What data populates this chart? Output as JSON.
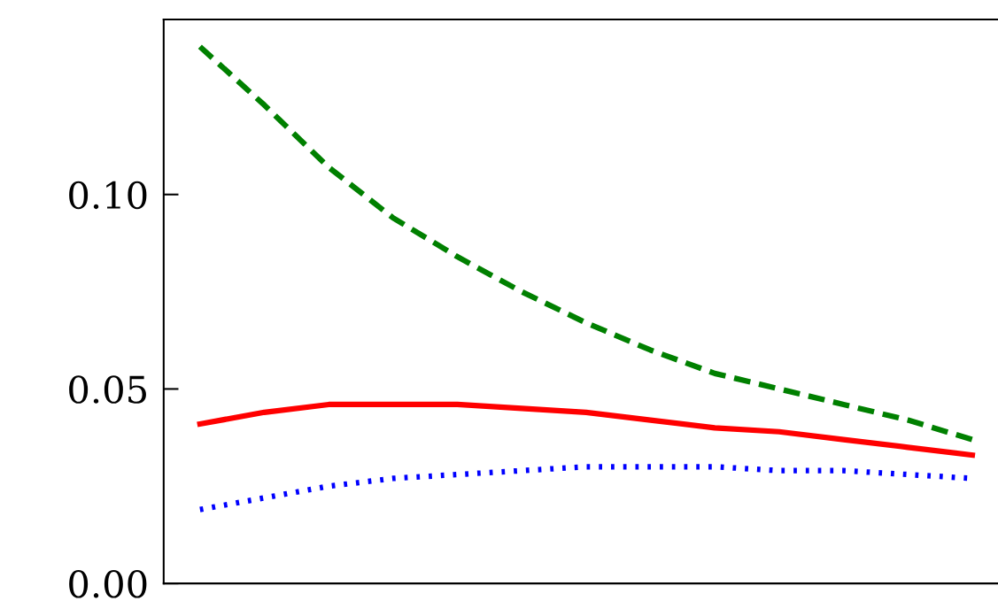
{
  "chart_data": {
    "type": "line",
    "categories": [
      null,
      null,
      null,
      null,
      null,
      null,
      null,
      null,
      null,
      null,
      null,
      null,
      null
    ],
    "series": [
      {
        "color": "#008000",
        "line_style": "dashed",
        "values": [
          0.138,
          0.123,
          0.107,
          0.094,
          0.084,
          0.075,
          0.067,
          0.06,
          0.054,
          0.05,
          0.046,
          0.042,
          0.037
        ]
      },
      {
        "color": "#ff0000",
        "line_style": "solid",
        "values": [
          0.041,
          0.044,
          0.046,
          0.046,
          0.046,
          0.045,
          0.044,
          0.042,
          0.04,
          0.039,
          0.037,
          0.035,
          0.033
        ]
      },
      {
        "color": "#0000ff",
        "line_style": "dotted",
        "values": [
          0.019,
          0.022,
          0.025,
          0.027,
          0.028,
          0.029,
          0.03,
          0.03,
          0.03,
          0.029,
          0.029,
          0.028,
          0.027
        ]
      }
    ],
    "ylim": [
      0,
      0.145
    ],
    "yticks": [
      {
        "value": 0,
        "label": "0.00"
      },
      {
        "value": 0.05,
        "label": "0.05"
      },
      {
        "value": 0.1,
        "label": "0.10"
      }
    ],
    "tick_labels": "y"
  }
}
